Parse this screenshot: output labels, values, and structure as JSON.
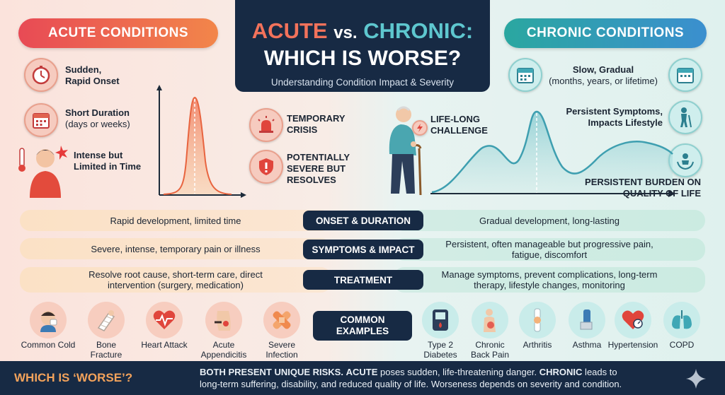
{
  "header": {
    "acute_label": "ACUTE CONDITIONS",
    "chronic_label": "CHRONIC CONDITIONS",
    "title_acute": "ACUTE",
    "title_vs": "vs.",
    "title_chronic": "CHRONIC:",
    "title_line2": "WHICH IS WORSE?",
    "subtitle": "Understanding Condition Impact & Severity"
  },
  "acute_features": [
    {
      "bold": "Sudden,",
      "bold2": "Rapid Onset",
      "icon": "stopwatch-icon"
    },
    {
      "bold": "Short Duration",
      "sub": "(days or weeks)",
      "icon": "calendar-icon"
    },
    {
      "bold": "Intense but",
      "bold2": "Limited in Time",
      "icon": "fever-person-icon"
    }
  ],
  "acute_callouts": [
    {
      "line1": "TEMPORARY",
      "line2": "CRISIS",
      "icon": "alarm-icon"
    },
    {
      "line1": "POTENTIALLY",
      "line2": "SEVERE BUT",
      "line3": "RESOLVES",
      "icon": "shield-alert-icon"
    }
  ],
  "chronic_features": [
    {
      "bold": "Slow, Gradual",
      "sub": "(months, years, or lifetime)",
      "icon": "calendar-icon"
    },
    {
      "bold": "Persistent Symptoms,",
      "bold2": "Impacts Lifestyle",
      "icon": "elderly-walker-icon"
    }
  ],
  "chronic_callouts": {
    "lifelong_line1": "LIFE-LONG",
    "lifelong_line2": "CHALLENGE",
    "burden_line1": "PERSISTENT BURDEN ON",
    "burden_line2": "QUALITY OF LIFE"
  },
  "rows": [
    {
      "topic": "ONSET & DURATION",
      "acute": "Rapid development, limited time",
      "chronic": "Gradual development, long-lasting"
    },
    {
      "topic": "SYMPTOMS & IMPACT",
      "acute": "Severe, intense, temporary pain or illness",
      "chronic_l1": "Persistent, often manageable but progressive pain,",
      "chronic_l2": "fatigue, discomfort"
    },
    {
      "topic": "TREATMENT",
      "acute_l1": "Resolve root cause, short-term care, direct",
      "acute_l2": "intervention (surgery, medication)",
      "chronic_l1": "Manage symptoms, prevent complications, long-term",
      "chronic_l2": "therapy, lifestyle changes, monitoring"
    }
  ],
  "examples": {
    "label_l1": "COMMON",
    "label_l2": "EXAMPLES",
    "acute": [
      {
        "l1": "Common Cold",
        "icon": "sneezing-icon"
      },
      {
        "l1": "Bone",
        "l2": "Fracture",
        "icon": "cast-arm-icon"
      },
      {
        "l1": "Heart Attack",
        "icon": "heart-pulse-icon"
      },
      {
        "l1": "Acute",
        "l2": "Appendicitis",
        "icon": "abdomen-icon"
      },
      {
        "l1": "Severe",
        "l2": "Infection",
        "icon": "bandage-icon"
      }
    ],
    "chronic": [
      {
        "l1": "Type 2",
        "l2": "Diabetes",
        "icon": "glucose-meter-icon"
      },
      {
        "l1": "Chronic",
        "l2": "Back Pain",
        "icon": "back-pain-icon"
      },
      {
        "l1": "Arthritis",
        "icon": "knee-joint-icon"
      },
      {
        "l1": "Asthma",
        "icon": "inhaler-icon"
      },
      {
        "l1": "Hypertension",
        "icon": "blood-pressure-icon"
      },
      {
        "l1": "COPD",
        "icon": "lungs-icon"
      }
    ]
  },
  "bottom": {
    "question": "WHICH IS ‘WORSE’?",
    "lead": "BOTH PRESENT UNIQUE RISKS.",
    "acute_word": "ACUTE",
    "acute_text": " poses sudden, life-threatening danger. ",
    "chronic_word": "CHRONIC",
    "chronic_text": " leads to",
    "line2": "long-term suffering, disability, and reduced quality of life. Worseness depends on severity and condition."
  }
}
